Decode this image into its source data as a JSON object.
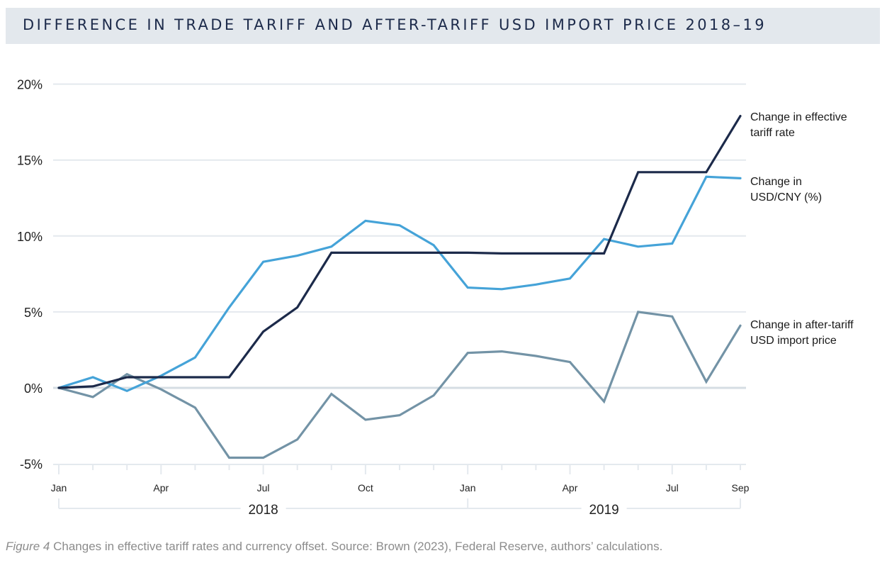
{
  "header": {
    "title": "DIFFERENCE IN TRADE TARIFF AND AFTER-TARIFF USD IMPORT PRICE 2018–19"
  },
  "caption": {
    "figure_label": "Figure 4",
    "text": " Changes in effective tariff rates and currency offset. Source: Brown (2023), Federal Reserve, authors’ calculations."
  },
  "chart_data": {
    "type": "line",
    "title": "DIFFERENCE IN TRADE TARIFF AND AFTER-TARIFF USD IMPORT PRICE 2018–19",
    "xlabel": "",
    "ylabel": "",
    "ylim": [
      -5,
      20
    ],
    "yticks": [
      -5,
      0,
      5,
      10,
      15,
      20
    ],
    "ytick_labels": [
      "-5%",
      "0%",
      "5%",
      "10%",
      "15%",
      "20%"
    ],
    "grid": true,
    "x": [
      "2018-01",
      "2018-02",
      "2018-03",
      "2018-04",
      "2018-05",
      "2018-06",
      "2018-07",
      "2018-08",
      "2018-09",
      "2018-10",
      "2018-11",
      "2018-12",
      "2019-01",
      "2019-02",
      "2019-03",
      "2019-04",
      "2019-05",
      "2019-06",
      "2019-07",
      "2019-08",
      "2019-09"
    ],
    "xtick_labels": [
      {
        "index": 0,
        "label": "Jan"
      },
      {
        "index": 3,
        "label": "Apr"
      },
      {
        "index": 6,
        "label": "Jul"
      },
      {
        "index": 9,
        "label": "Oct"
      },
      {
        "index": 12,
        "label": "Jan"
      },
      {
        "index": 15,
        "label": "Apr"
      },
      {
        "index": 18,
        "label": "Jul"
      },
      {
        "index": 20,
        "label": "Sep"
      }
    ],
    "major_tick_indices": [
      0,
      3,
      6,
      9,
      12,
      15,
      18
    ],
    "year_groups": [
      {
        "label": "2018",
        "start": 0,
        "end": 12
      },
      {
        "label": "2019",
        "start": 12,
        "end": 20
      }
    ],
    "legend_placement": "right (end-of-line labels)",
    "series": [
      {
        "name": "Change in effective tariff rate",
        "label_lines": [
          "Change in effective",
          "tariff rate"
        ],
        "color": "#1c2a4a",
        "values": [
          0,
          0.1,
          0.7,
          0.7,
          0.7,
          0.7,
          3.7,
          5.3,
          8.9,
          8.9,
          8.9,
          8.9,
          8.9,
          8.85,
          8.85,
          8.85,
          8.85,
          14.2,
          14.2,
          14.2,
          17.9
        ]
      },
      {
        "name": "Change in USD/CNY (%)",
        "label_lines": [
          "Change in",
          "USD/CNY (%)"
        ],
        "color": "#45a3d8",
        "values": [
          0,
          0.7,
          -0.2,
          0.8,
          2.0,
          5.3,
          8.3,
          8.7,
          9.3,
          11.0,
          10.7,
          9.4,
          6.6,
          6.5,
          6.8,
          7.2,
          9.8,
          9.3,
          9.5,
          13.9,
          13.8
        ]
      },
      {
        "name": "Change in after-tariff USD import price",
        "label_lines": [
          "Change in after-tariff",
          "USD import price"
        ],
        "color": "#7393a6",
        "values": [
          0,
          -0.6,
          0.9,
          -0.1,
          -1.3,
          -4.6,
          -4.6,
          -3.4,
          -0.4,
          -2.1,
          -1.8,
          -0.5,
          2.3,
          2.4,
          2.1,
          1.7,
          -0.9,
          5.0,
          4.7,
          0.4,
          4.1
        ]
      }
    ],
    "colors": {
      "grid": "#e4e9ee",
      "zero_line": "#d5dde3",
      "axis_text": "#222222"
    }
  }
}
